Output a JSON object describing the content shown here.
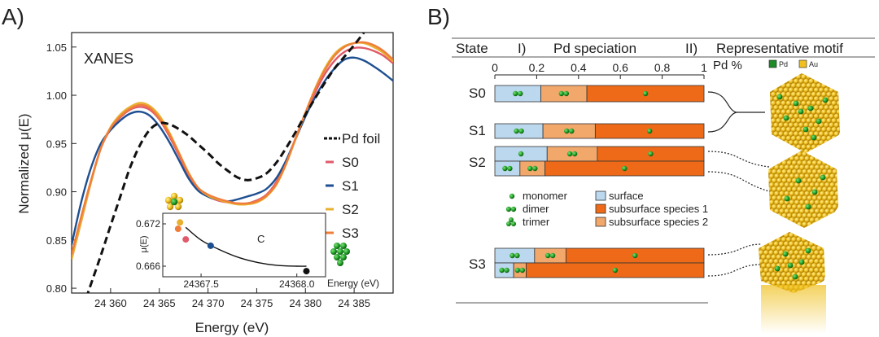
{
  "panel_a_label": "A)",
  "panel_b_label": "B)",
  "chart_data": [
    {
      "type": "line",
      "panel": "A)",
      "title": "XANES",
      "xlabel": "Energy (eV)",
      "ylabel": "Normalized  μ(E)",
      "xlim": [
        24356,
        24389
      ],
      "ylim": [
        0.795,
        1.065
      ],
      "xticks": [
        24360,
        24365,
        24370,
        24375,
        24380,
        24385
      ],
      "xtick_labels": [
        "24 360",
        "24 365",
        "24 370",
        "24 375",
        "24 380",
        "24 385"
      ],
      "yticks": [
        0.8,
        0.85,
        0.9,
        0.95,
        1.0,
        1.05
      ],
      "ytick_labels": [
        "0.80",
        "0.85",
        "0.90",
        "0.95",
        "1.00",
        "1.05"
      ],
      "legend_position": "right",
      "series": [
        {
          "name": "Pd foil",
          "color": "#111111",
          "dashed": true,
          "x": [
            24357.5,
            24359,
            24360,
            24361,
            24362,
            24363,
            24364,
            24365,
            24366,
            24367,
            24368,
            24369,
            24370,
            24371,
            24372,
            24373,
            24374,
            24375,
            24376,
            24377,
            24378,
            24379,
            24380,
            24381,
            24382,
            24383,
            24384,
            24385,
            24386
          ],
          "y": [
            0.79,
            0.834,
            0.865,
            0.895,
            0.925,
            0.948,
            0.964,
            0.971,
            0.97,
            0.965,
            0.958,
            0.949,
            0.94,
            0.93,
            0.922,
            0.915,
            0.912,
            0.914,
            0.919,
            0.93,
            0.945,
            0.962,
            0.98,
            0.997,
            1.013,
            1.028,
            1.04,
            1.052,
            1.065
          ]
        },
        {
          "name": "S0",
          "color": "#e05a6a",
          "dashed": false,
          "x": [
            24356,
            24357,
            24358,
            24359,
            24360,
            24361,
            24362,
            24363,
            24364,
            24365,
            24366,
            24367,
            24368,
            24369,
            24370,
            24371,
            24372,
            24373,
            24374,
            24375,
            24376,
            24377,
            24378,
            24379,
            24380,
            24381,
            24382,
            24383,
            24384,
            24385,
            24386,
            24387,
            24388,
            24389
          ],
          "y": [
            0.83,
            0.87,
            0.91,
            0.945,
            0.965,
            0.977,
            0.985,
            0.988,
            0.985,
            0.975,
            0.958,
            0.938,
            0.917,
            0.902,
            0.895,
            0.891,
            0.889,
            0.888,
            0.888,
            0.891,
            0.897,
            0.91,
            0.93,
            0.955,
            0.98,
            1.003,
            1.022,
            1.036,
            1.045,
            1.049,
            1.049,
            1.046,
            1.041,
            1.033
          ]
        },
        {
          "name": "S1",
          "color": "#1d4f91",
          "dashed": false,
          "x": [
            24356,
            24357,
            24358,
            24359,
            24360,
            24361,
            24362,
            24363,
            24364,
            24365,
            24366,
            24367,
            24368,
            24369,
            24370,
            24371,
            24372,
            24373,
            24374,
            24375,
            24376,
            24377,
            24378,
            24379,
            24380,
            24381,
            24382,
            24383,
            24384,
            24385,
            24386,
            24387,
            24388,
            24389
          ],
          "y": [
            0.845,
            0.89,
            0.925,
            0.95,
            0.964,
            0.974,
            0.981,
            0.983,
            0.979,
            0.968,
            0.952,
            0.933,
            0.914,
            0.901,
            0.895,
            0.892,
            0.89,
            0.892,
            0.895,
            0.898,
            0.903,
            0.914,
            0.932,
            0.955,
            0.978,
            0.998,
            1.015,
            1.028,
            1.037,
            1.039,
            1.036,
            1.03,
            1.023,
            1.015
          ]
        },
        {
          "name": "S2",
          "color": "#e8b030",
          "dashed": false,
          "x": [
            24356,
            24357,
            24358,
            24359,
            24360,
            24361,
            24362,
            24363,
            24364,
            24365,
            24366,
            24367,
            24368,
            24369,
            24370,
            24371,
            24372,
            24373,
            24374,
            24375,
            24376,
            24377,
            24378,
            24379,
            24380,
            24381,
            24382,
            24383,
            24384,
            24385,
            24386,
            24387,
            24388,
            24389
          ],
          "y": [
            0.83,
            0.87,
            0.91,
            0.945,
            0.967,
            0.98,
            0.988,
            0.992,
            0.989,
            0.979,
            0.962,
            0.941,
            0.92,
            0.904,
            0.896,
            0.892,
            0.889,
            0.887,
            0.887,
            0.889,
            0.895,
            0.907,
            0.928,
            0.955,
            0.982,
            1.007,
            1.028,
            1.043,
            1.051,
            1.054,
            1.054,
            1.05,
            1.044,
            1.035
          ]
        },
        {
          "name": "S3",
          "color": "#f07d3a",
          "dashed": false,
          "x": [
            24356,
            24357,
            24358,
            24359,
            24360,
            24361,
            24362,
            24363,
            24364,
            24365,
            24366,
            24367,
            24368,
            24369,
            24370,
            24371,
            24372,
            24373,
            24374,
            24375,
            24376,
            24377,
            24378,
            24379,
            24380,
            24381,
            24382,
            24383,
            24384,
            24385,
            24386,
            24387,
            24388,
            24389
          ],
          "y": [
            0.835,
            0.875,
            0.912,
            0.945,
            0.966,
            0.978,
            0.986,
            0.99,
            0.987,
            0.976,
            0.96,
            0.94,
            0.919,
            0.904,
            0.897,
            0.893,
            0.89,
            0.888,
            0.888,
            0.89,
            0.896,
            0.908,
            0.929,
            0.956,
            0.982,
            1.006,
            1.026,
            1.041,
            1.05,
            1.054,
            1.055,
            1.052,
            1.046,
            1.037
          ]
        }
      ],
      "inset": {
        "type": "scatter",
        "xlabel": "Energy (eV)",
        "ylabel": "μ(E)",
        "xlim": [
          24367.3,
          24368.15
        ],
        "ylim": [
          0.6645,
          0.6735
        ],
        "xticks": [
          24367.5,
          24368.0
        ],
        "xtick_labels": [
          "24367.5",
          "24368.0"
        ],
        "yticks": [
          0.666,
          0.672
        ],
        "ytick_labels": [
          "0.666",
          "0.672"
        ],
        "annotation": "C",
        "points": [
          {
            "name": "S2",
            "x": 24367.39,
            "y": 0.6722,
            "color": "#e8b030"
          },
          {
            "name": "S3",
            "x": 24367.38,
            "y": 0.6713,
            "color": "#f07d3a"
          },
          {
            "name": "S0",
            "x": 24367.42,
            "y": 0.6698,
            "color": "#e05a6a"
          },
          {
            "name": "S1",
            "x": 24367.55,
            "y": 0.6689,
            "color": "#1d4f91"
          },
          {
            "name": "",
            "x": 24368.05,
            "y": 0.6653,
            "color": "#111111"
          }
        ],
        "trend": {
          "x": [
            24367.42,
            24367.5,
            24367.6,
            24367.7,
            24367.8,
            24367.9,
            24368.0,
            24368.05
          ],
          "y": [
            0.6715,
            0.6697,
            0.6683,
            0.6672,
            0.6665,
            0.6661,
            0.666,
            0.666
          ]
        }
      }
    },
    {
      "type": "bar",
      "panel": "B)",
      "orientation": "horizontal",
      "stacked": true,
      "header": {
        "state": "State",
        "col1": "I)",
        "col2": "Pd speciation",
        "col3": "II)",
        "col4": "Representative motif"
      },
      "axis_label": "Pd %",
      "xlim": [
        0,
        1
      ],
      "xticks": [
        0,
        0.2,
        0.4,
        0.6,
        0.8,
        1
      ],
      "xtick_labels": [
        "0",
        "0.2",
        "0.4",
        "0.6",
        "0.8",
        "1"
      ],
      "categories": [
        "surface",
        "subsurface species 2",
        "subsurface species 1"
      ],
      "colors": [
        "#bcd8ee",
        "#f2a76b",
        "#ee6a18"
      ],
      "rows": [
        {
          "state": "S0",
          "values": [
            0.22,
            0.22,
            0.56
          ],
          "clusters": [
            "dimer",
            "dimer",
            "monomer"
          ]
        },
        {
          "state": "S1",
          "values": [
            0.23,
            0.25,
            0.52
          ],
          "clusters": [
            "dimer",
            "dimer",
            "monomer"
          ]
        },
        {
          "state": "S2",
          "values": [
            0.25,
            0.24,
            0.51
          ],
          "clusters": [
            "monomer",
            "dimer",
            "monomer"
          ]
        },
        {
          "state": "",
          "values": [
            0.12,
            0.12,
            0.76
          ],
          "clusters": [
            "dimer",
            "dimer",
            "monomer"
          ]
        },
        {
          "state": "S3",
          "values": [
            0.19,
            0.15,
            0.66
          ],
          "clusters": [
            "dimer",
            "dimer",
            "monomer"
          ]
        },
        {
          "state": "",
          "values": [
            0.09,
            0.06,
            0.85
          ],
          "clusters": [
            "dimer",
            "dimer",
            "monomer"
          ]
        }
      ],
      "legend_clusters": [
        "monomer",
        "dimer",
        "trimer"
      ],
      "legend_species": [
        "surface",
        "subsurface species 1",
        "subsurface species 2"
      ],
      "motif_legend": [
        "Pd",
        "Au"
      ],
      "motif_colors": {
        "Pd": "#1e8a2a",
        "Au": "#f0c020"
      }
    }
  ]
}
